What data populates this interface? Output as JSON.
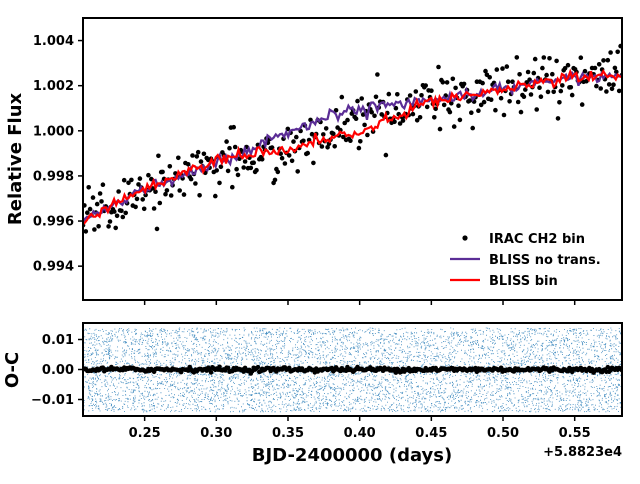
{
  "chart_data": [
    {
      "type": "scatter+line",
      "panel": "top",
      "ylabel": "Relative Flux",
      "xlim": [
        0.207,
        0.583
      ],
      "ylim": [
        0.9925,
        1.005
      ],
      "yticks": [
        0.994,
        0.996,
        0.998,
        1.0,
        1.002,
        1.004
      ],
      "ytick_labels": [
        "0.994",
        "0.996",
        "0.998",
        "1.000",
        "1.002",
        "1.004"
      ],
      "legend_position": "lower-right",
      "series": [
        {
          "name": "IRAC CH2 bin",
          "kind": "points",
          "color": "#000000",
          "trend": {
            "x": [
              0.207,
              0.25,
              0.3,
              0.35,
              0.4,
              0.45,
              0.5,
              0.55,
              0.583
            ],
            "y": [
              0.996,
              0.9974,
              0.9986,
              0.9992,
              1.0003,
              1.0012,
              1.002,
              1.0024,
              1.0024
            ]
          },
          "scatter_std": 0.0006,
          "count": 380
        },
        {
          "name": "BLISS no trans.",
          "kind": "line",
          "color": "#5b2d96",
          "x": [
            0.207,
            0.25,
            0.3,
            0.32,
            0.35,
            0.37,
            0.4,
            0.42,
            0.45,
            0.47,
            0.5,
            0.55,
            0.583
          ],
          "y": [
            0.996,
            0.9974,
            0.9986,
            0.9991,
            0.9999,
            1.0005,
            1.001,
            1.0012,
            1.0014,
            1.0015,
            1.0019,
            1.0024,
            1.0024
          ]
        },
        {
          "name": "BLISS bin",
          "kind": "line",
          "color": "#ff0000",
          "x": [
            0.207,
            0.25,
            0.3,
            0.32,
            0.35,
            0.37,
            0.4,
            0.42,
            0.45,
            0.47,
            0.5,
            0.55,
            0.583
          ],
          "y": [
            0.996,
            0.9974,
            0.9987,
            0.999,
            0.9991,
            0.9995,
            0.9999,
            1.0005,
            1.0013,
            1.0015,
            1.0019,
            1.0024,
            1.0024
          ]
        }
      ]
    },
    {
      "type": "scatter",
      "panel": "bottom",
      "ylabel": "O-C",
      "xlabel": "BJD-2400000 (days)",
      "x_offset_label": "+5.8823e4",
      "xlim": [
        0.207,
        0.583
      ],
      "ylim": [
        -0.0155,
        0.0155
      ],
      "yticks": [
        -0.01,
        0.0,
        0.01
      ],
      "ytick_labels": [
        "−0.01",
        "0.00",
        "0.01"
      ],
      "xticks": [
        0.25,
        0.3,
        0.35,
        0.4,
        0.45,
        0.5,
        0.55
      ],
      "xtick_labels": [
        "0.25",
        "0.30",
        "0.35",
        "0.40",
        "0.45",
        "0.50",
        "0.55"
      ],
      "series": [
        {
          "name": "unbinned residuals",
          "kind": "points",
          "color": "#1f77b4",
          "range": [
            -0.014,
            0.014
          ],
          "count": 9000
        },
        {
          "name": "binned residuals",
          "kind": "points",
          "color": "#000000",
          "center": 0.0,
          "scatter_std": 0.0004,
          "count": 380
        }
      ]
    }
  ]
}
